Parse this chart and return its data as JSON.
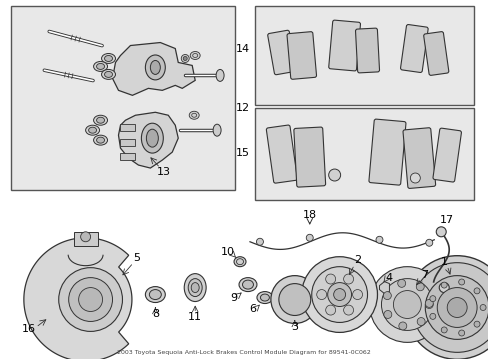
{
  "title": "2003 Toyota Sequoia Anti-Lock Brakes Control Module Diagram for 89541-0C062",
  "bg_color": "#ffffff",
  "fig_width": 4.89,
  "fig_height": 3.6,
  "dpi": 100,
  "lc": "#333333",
  "box_bg": "#e8e8e8",
  "box_ec": "#555555"
}
